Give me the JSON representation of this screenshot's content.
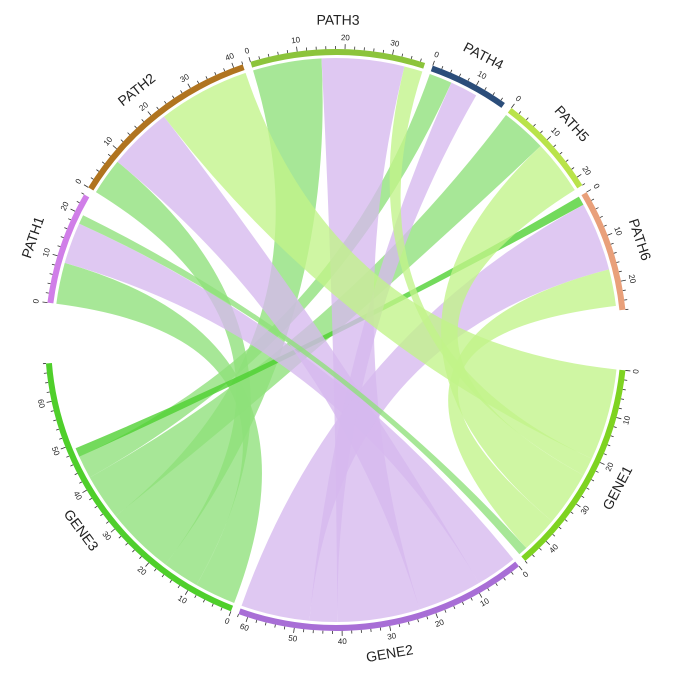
{
  "chart_data": {
    "type": "chord",
    "sectors": [
      {
        "name": "GENE1",
        "size": 46,
        "color": "#7ed321",
        "max_label": 40,
        "minor": 2
      },
      {
        "name": "GENE2",
        "size": 62,
        "color": "#a86ed6",
        "max_label": 60,
        "minor": 2
      },
      {
        "name": "GENE3",
        "size": 68,
        "color": "#4fcf2b",
        "max_label": 60,
        "minor": 2
      },
      {
        "name": "PATH1",
        "size": 24,
        "color": "#d07ee8",
        "max_label": 20,
        "minor": 2
      },
      {
        "name": "PATH2",
        "size": 42,
        "color": "#b0741f",
        "max_label": 40,
        "minor": 2
      },
      {
        "name": "PATH3",
        "size": 37,
        "color": "#8cc43b",
        "max_label": 30,
        "minor": 2
      },
      {
        "name": "PATH4",
        "size": 17,
        "color": "#2b4d7a",
        "max_label": 10,
        "minor": 2
      },
      {
        "name": "PATH5",
        "size": 22,
        "color": "#b9e34a",
        "max_label": 20,
        "minor": 2
      },
      {
        "name": "PATH6",
        "size": 26,
        "color": "#e9a07a",
        "max_label": 20,
        "minor": 2
      }
    ],
    "links": [
      {
        "from": "GENE3",
        "to": "PATH1",
        "value": 9,
        "color": "#8ee07a"
      },
      {
        "from": "GENE3",
        "to": "PATH2",
        "value": 8,
        "color": "#8ee07a"
      },
      {
        "from": "GENE3",
        "to": "PATH3",
        "value": 15,
        "color": "#8ee07a"
      },
      {
        "from": "GENE3",
        "to": "PATH5",
        "value": 10,
        "color": "#8ee07a"
      },
      {
        "from": "GENE3",
        "to": "PATH4",
        "value": 5,
        "color": "#8ee07a"
      },
      {
        "from": "GENE3",
        "to": "PATH6",
        "value": 2,
        "color": "#4ccf2e"
      },
      {
        "from": "GENE2",
        "to": "PATH1",
        "value": 9,
        "color": "#d6b8ee"
      },
      {
        "from": "GENE2",
        "to": "PATH2",
        "value": 14,
        "color": "#d6b8ee"
      },
      {
        "from": "GENE2",
        "to": "PATH3",
        "value": 18,
        "color": "#d6b8ee"
      },
      {
        "from": "GENE2",
        "to": "PATH4",
        "value": 6,
        "color": "#d6b8ee"
      },
      {
        "from": "GENE2",
        "to": "PATH6",
        "value": 15,
        "color": "#d6b8ee"
      },
      {
        "from": "GENE1",
        "to": "PATH2",
        "value": 20,
        "color": "#c2f489"
      },
      {
        "from": "GENE1",
        "to": "PATH3",
        "value": 4,
        "color": "#c2f489"
      },
      {
        "from": "GENE1",
        "to": "PATH5",
        "value": 12,
        "color": "#c2f489"
      },
      {
        "from": "GENE1",
        "to": "PATH6",
        "value": 8,
        "color": "#c2f489"
      },
      {
        "from": "GENE1",
        "to": "PATH1",
        "value": 2,
        "color": "#8ee07a"
      }
    ],
    "title": "",
    "legend": "none"
  }
}
